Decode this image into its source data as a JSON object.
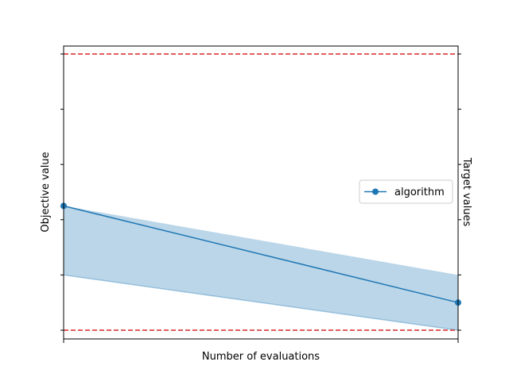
{
  "chart_data": {
    "type": "line",
    "title": "",
    "xlabel": "Number of evaluations",
    "ylabel": "Objective value",
    "ylabel_right": "Target values",
    "xlim": [
      0,
      1
    ],
    "ylim": [
      0,
      1
    ],
    "grid": false,
    "legend": {
      "placement": "center-right",
      "entries": [
        "algorithm"
      ]
    },
    "series": [
      {
        "name": "algorithm",
        "color": "#1f77b4",
        "marker": "circle",
        "x": [
          0,
          1
        ],
        "y": [
          0.45,
          0.1
        ],
        "band_lower": [
          0.2,
          0.0
        ],
        "band_upper": [
          0.45,
          0.2
        ]
      }
    ],
    "target_lines": {
      "color": "#d62728",
      "style": "dashed",
      "values": [
        0.0,
        1.0
      ]
    },
    "y_ticks": [
      0.0,
      0.2,
      0.4,
      0.6,
      0.8,
      1.0
    ],
    "x_ticks": [
      0,
      1
    ]
  }
}
